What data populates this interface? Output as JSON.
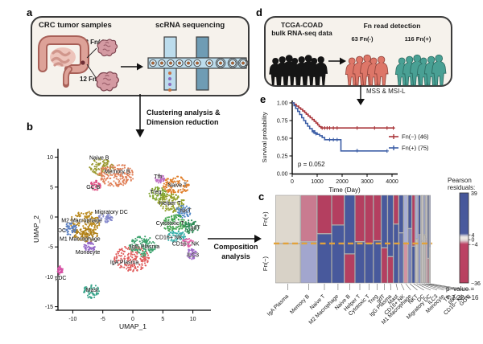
{
  "panels": {
    "a": {
      "letter": "a",
      "title_left": "CRC tumor samples",
      "title_right": "scRNA sequencing",
      "sample_neg": "12 Fn(-)",
      "sample_pos": "12 Fn(+)"
    },
    "b": {
      "letter": "b",
      "arrow_line1": "Clustering analysis &",
      "arrow_line2": "Dimension reduction"
    },
    "c": {
      "letter": "c",
      "legend_title1": "Pearson",
      "legend_title2": "residuals:",
      "pvalue_line1": "p−value =",
      "pvalue_line2": "< 2.22e−16"
    },
    "d": {
      "letter": "d",
      "title_line1": "TCGA-COAD",
      "title_line2": "bulk RNA-seq data",
      "detect_title": "Fn read detection",
      "group_neg": "63 Fn(-)",
      "group_pos": "116 Fn(+)",
      "filter_label": "MSS & MSI-L"
    },
    "e": {
      "letter": "e"
    },
    "flow": {
      "composition_line1": "Composition",
      "composition_line2": "analysis"
    }
  },
  "chart_data": [
    {
      "id": "umap",
      "type": "scatter",
      "xlabel": "UMAP_1",
      "ylabel": "UMAP_2",
      "xlim": [
        -13.5,
        12.7
      ],
      "ylim": [
        -15.5,
        11.5
      ],
      "xticks": [
        -10,
        -5,
        0,
        5,
        10
      ],
      "yticks": [
        10,
        5,
        0,
        -5,
        -10,
        -15
      ],
      "clusters": [
        {
          "name": "Naive B",
          "color": "#99992e",
          "cx": -5.2,
          "cy": 8.4,
          "rx": 2.0,
          "ry": 1.5,
          "lx": -5.6,
          "ly": 9.9
        },
        {
          "name": "Memory B",
          "color": "#e07f56",
          "cx": -2.8,
          "cy": 7.0,
          "rx": 3.0,
          "ry": 1.9,
          "lx": -2.6,
          "ly": 7.6
        },
        {
          "name": "GC B",
          "color": "#dc4a7e",
          "cx": -6.2,
          "cy": 5.3,
          "rx": 0.9,
          "ry": 0.8,
          "lx": -6.6,
          "ly": 5.0
        },
        {
          "name": "Migratory DC",
          "color": "#8488cc",
          "cx": -4.6,
          "cy": -0.2,
          "rx": 1.2,
          "ry": 0.9,
          "lx": -3.6,
          "ly": 0.8
        },
        {
          "name": "M2 Macrophage",
          "color": "#ba8a1e",
          "cx": -8.0,
          "cy": -1.0,
          "rx": 2.6,
          "ry": 2.0,
          "lx": -8.5,
          "ly": -0.6
        },
        {
          "name": "DC",
          "color": "#5b7fc0",
          "cx": -10.4,
          "cy": -2.0,
          "rx": 1.0,
          "ry": 1.2,
          "lx": -11.8,
          "ly": -2.3
        },
        {
          "name": "M1 Macrophage",
          "color": "#ad7d14",
          "cx": -8.0,
          "cy": -3.2,
          "rx": 2.2,
          "ry": 1.3,
          "lx": -8.8,
          "ly": -3.7
        },
        {
          "name": "Monocyte",
          "color": "#9468c8",
          "cx": -7.2,
          "cy": -5.0,
          "rx": 1.0,
          "ry": 0.9,
          "lx": -7.5,
          "ly": -5.9
        },
        {
          "name": "pDC",
          "color": "#d651a5",
          "cx": -12.1,
          "cy": -8.9,
          "rx": 0.5,
          "ry": 0.7,
          "lx": -12.0,
          "ly": -10.2
        },
        {
          "name": "Mast",
          "color": "#37a389",
          "cx": -6.9,
          "cy": -12.4,
          "rx": 1.3,
          "ry": 1.2,
          "lx": -6.8,
          "ly": -12.2
        },
        {
          "name": "IgA Plasma",
          "color": "#e05a5a",
          "cx": -0.2,
          "cy": -6.9,
          "rx": 2.9,
          "ry": 2.2,
          "lx": -1.4,
          "ly": -7.6
        },
        {
          "name": "IgG Plasma",
          "color": "#3ba26c",
          "cx": 1.7,
          "cy": -4.9,
          "rx": 2.3,
          "ry": 1.7,
          "lx": 2.0,
          "ly": -5.0
        },
        {
          "name": "Tfh",
          "color": "#bf6ec4",
          "cx": 4.5,
          "cy": 6.4,
          "rx": 0.8,
          "ry": 0.7,
          "lx": 4.2,
          "ly": 6.7
        },
        {
          "name": "Naive T",
          "color": "#e07d28",
          "cx": 7.2,
          "cy": 5.3,
          "rx": 2.3,
          "ry": 1.5,
          "lx": 7.4,
          "ly": 5.3
        },
        {
          "name": "Treg",
          "color": "#7fa42e",
          "cx": 4.2,
          "cy": 3.9,
          "rx": 1.5,
          "ry": 1.1,
          "lx": 3.8,
          "ly": 4.2
        },
        {
          "name": "Helper T",
          "color": "#93a02a",
          "cx": 6.4,
          "cy": 2.4,
          "rx": 2.2,
          "ry": 1.6,
          "lx": 6.2,
          "ly": 2.3
        },
        {
          "name": "NKT",
          "color": "#4f86c6",
          "cx": 8.4,
          "cy": 0.9,
          "rx": 1.3,
          "ry": 1.1,
          "lx": 8.8,
          "ly": 1.0
        },
        {
          "name": "Cytotoxic T",
          "color": "#3fa34d",
          "cx": 6.9,
          "cy": -1.0,
          "rx": 2.0,
          "ry": 1.5,
          "lx": 6.2,
          "ly": -1.1
        },
        {
          "name": "gdT",
          "color": "#2e8b57",
          "cx": 9.7,
          "cy": -1.6,
          "rx": 1.3,
          "ry": 1.2,
          "lx": 10.4,
          "ly": -1.8
        },
        {
          "name": "CD16+ NK",
          "color": "#35b0ab",
          "cx": 7.3,
          "cy": -3.3,
          "rx": 1.7,
          "ry": 1.0,
          "lx": 6.0,
          "ly": -3.4
        },
        {
          "name": "CD16− NK",
          "color": "#e35ea8",
          "cx": 9.1,
          "cy": -4.3,
          "rx": 1.0,
          "ry": 0.7,
          "lx": 8.8,
          "ly": -4.5
        },
        {
          "name": "ILC3",
          "color": "#a06cc8",
          "cx": 9.8,
          "cy": -6.2,
          "rx": 0.8,
          "ry": 1.0,
          "lx": 10.0,
          "ly": -6.4
        }
      ]
    },
    {
      "id": "km",
      "type": "line",
      "xlabel": "Time (Day)",
      "ylabel": "Survival probability",
      "xticks": [
        0,
        1000,
        2000,
        3000,
        4000
      ],
      "yticks": [
        "1.00",
        "0.75",
        "0.50",
        "0.25",
        "0.00"
      ],
      "pvalue": "p = 0.052",
      "series": [
        {
          "name": "Fn(−) (46)",
          "color": "#a93439",
          "steps": [
            [
              0,
              1.0
            ],
            [
              80,
              0.978
            ],
            [
              160,
              0.955
            ],
            [
              260,
              0.93
            ],
            [
              340,
              0.91
            ],
            [
              420,
              0.885
            ],
            [
              500,
              0.862
            ],
            [
              560,
              0.84
            ],
            [
              640,
              0.815
            ],
            [
              720,
              0.79
            ],
            [
              800,
              0.765
            ],
            [
              880,
              0.74
            ],
            [
              950,
              0.715
            ],
            [
              1020,
              0.69
            ],
            [
              1080,
              0.665
            ],
            [
              1150,
              0.645
            ],
            [
              4100,
              0.645
            ]
          ],
          "censors": [
            [
              1200,
              0.645
            ],
            [
              1300,
              0.645
            ],
            [
              1400,
              0.645
            ],
            [
              1500,
              0.645
            ],
            [
              1650,
              0.645
            ],
            [
              1800,
              0.645
            ],
            [
              2600,
              0.645
            ],
            [
              3300,
              0.645
            ],
            [
              3800,
              0.645
            ],
            [
              4050,
              0.645
            ]
          ]
        },
        {
          "name": "Fn(+) (75)",
          "color": "#3c5ea6",
          "steps": [
            [
              0,
              1.0
            ],
            [
              70,
              0.96
            ],
            [
              140,
              0.92
            ],
            [
              220,
              0.88
            ],
            [
              300,
              0.835
            ],
            [
              380,
              0.79
            ],
            [
              460,
              0.75
            ],
            [
              540,
              0.71
            ],
            [
              620,
              0.67
            ],
            [
              700,
              0.635
            ],
            [
              800,
              0.605
            ],
            [
              900,
              0.575
            ],
            [
              1000,
              0.555
            ],
            [
              1100,
              0.535
            ],
            [
              1200,
              0.51
            ],
            [
              1300,
              0.48
            ],
            [
              1950,
              0.48
            ],
            [
              1951,
              0.32
            ],
            [
              3800,
              0.32
            ]
          ],
          "censors": [
            [
              850,
              0.59
            ],
            [
              950,
              0.565
            ],
            [
              1500,
              0.48
            ],
            [
              1650,
              0.48
            ],
            [
              1800,
              0.48
            ],
            [
              2600,
              0.325
            ],
            [
              3800,
              0.32
            ]
          ]
        }
      ]
    },
    {
      "id": "mosaic",
      "type": "mosaic",
      "rows": [
        "Fn(+)",
        "Fn(−)"
      ],
      "baseline_frac": 0.55,
      "legend": {
        "max": 39,
        "min": -36,
        "ticks": [
          4,
          0,
          -4
        ]
      },
      "columns": [
        {
          "label": "IgA Plasma",
          "w": 26,
          "split": 0.55,
          "top": "#ded8ce",
          "bottom": "#d8d2c7"
        },
        {
          "label": "Memory B",
          "w": 17,
          "split": 0.53,
          "top": "#c97b90",
          "bottom": "#a2a6ce"
        },
        {
          "label": "Naive T",
          "w": 15,
          "split": 0.44,
          "top": "#b43f60",
          "bottom": "#48599c"
        },
        {
          "label": "M2 Macrophage",
          "w": 13,
          "split": 0.34,
          "top": "#b43f60",
          "bottom": "#48599c"
        },
        {
          "label": "Naive B",
          "w": 11,
          "split": 0.67,
          "top": "#48599c",
          "bottom": "#b43f60"
        },
        {
          "label": "Helper T",
          "w": 10,
          "split": 0.53,
          "top": "#b43f60",
          "bottom": "#48599c"
        },
        {
          "label": "Cytotoxic T",
          "w": 9,
          "split": 0.55,
          "top": "#b43f60",
          "bottom": "#48599c"
        },
        {
          "label": "Treg",
          "w": 8,
          "split": 0.52,
          "top": "#b43f60",
          "bottom": "#48599c"
        },
        {
          "label": "gdT",
          "w": 6.5,
          "split": 0.6,
          "top": "#48599c",
          "bottom": "#b43f60"
        },
        {
          "label": "IgG Plasma",
          "w": 6,
          "split": 0.7,
          "top": "#48599c",
          "bottom": "#b43f60"
        },
        {
          "label": "Mast",
          "w": 5.5,
          "split": 0.33,
          "top": "#b43f60",
          "bottom": "#48599c"
        },
        {
          "label": "CD16+ NK",
          "w": 5,
          "split": 0.43,
          "top": "#48599c",
          "bottom": "#5d6ca8"
        },
        {
          "label": "M1 Macrophage",
          "w": 4.5,
          "split": 0.54,
          "top": "#a9aed4",
          "bottom": "#d294a2"
        },
        {
          "label": "NKT",
          "w": 4,
          "split": 0.38,
          "top": "#48599c",
          "bottom": "#7d87ba"
        },
        {
          "label": "DC",
          "w": 3.5,
          "split": 0.58,
          "top": "#b43f60",
          "bottom": "#48599c"
        },
        {
          "label": "Migratory DC",
          "w": 3,
          "split": 0.5,
          "top": "#a9aed4",
          "bottom": "#c6c2bd"
        },
        {
          "label": "ILC3",
          "w": 2.8,
          "split": 0.45,
          "top": "#48599c",
          "bottom": "#8f97c4"
        },
        {
          "label": "Monocyte",
          "w": 2.5,
          "split": 0.52,
          "top": "#c6c2bd",
          "bottom": "#c6c2bd"
        },
        {
          "label": "Tfh",
          "w": 2.2,
          "split": 0.45,
          "top": "#9aa2cc",
          "bottom": "#c6c2bd"
        },
        {
          "label": "pDC",
          "w": 2,
          "split": 0.5,
          "top": "#c6c2bd",
          "bottom": "#d0a9b2"
        },
        {
          "label": "CD16− NK",
          "w": 1.8,
          "split": 0.72,
          "top": "#48599c",
          "bottom": "#c9697f"
        },
        {
          "label": "GC B",
          "w": 1.6,
          "split": 0.6,
          "top": "#8f97c4",
          "bottom": "#c6c2bd"
        }
      ]
    }
  ]
}
